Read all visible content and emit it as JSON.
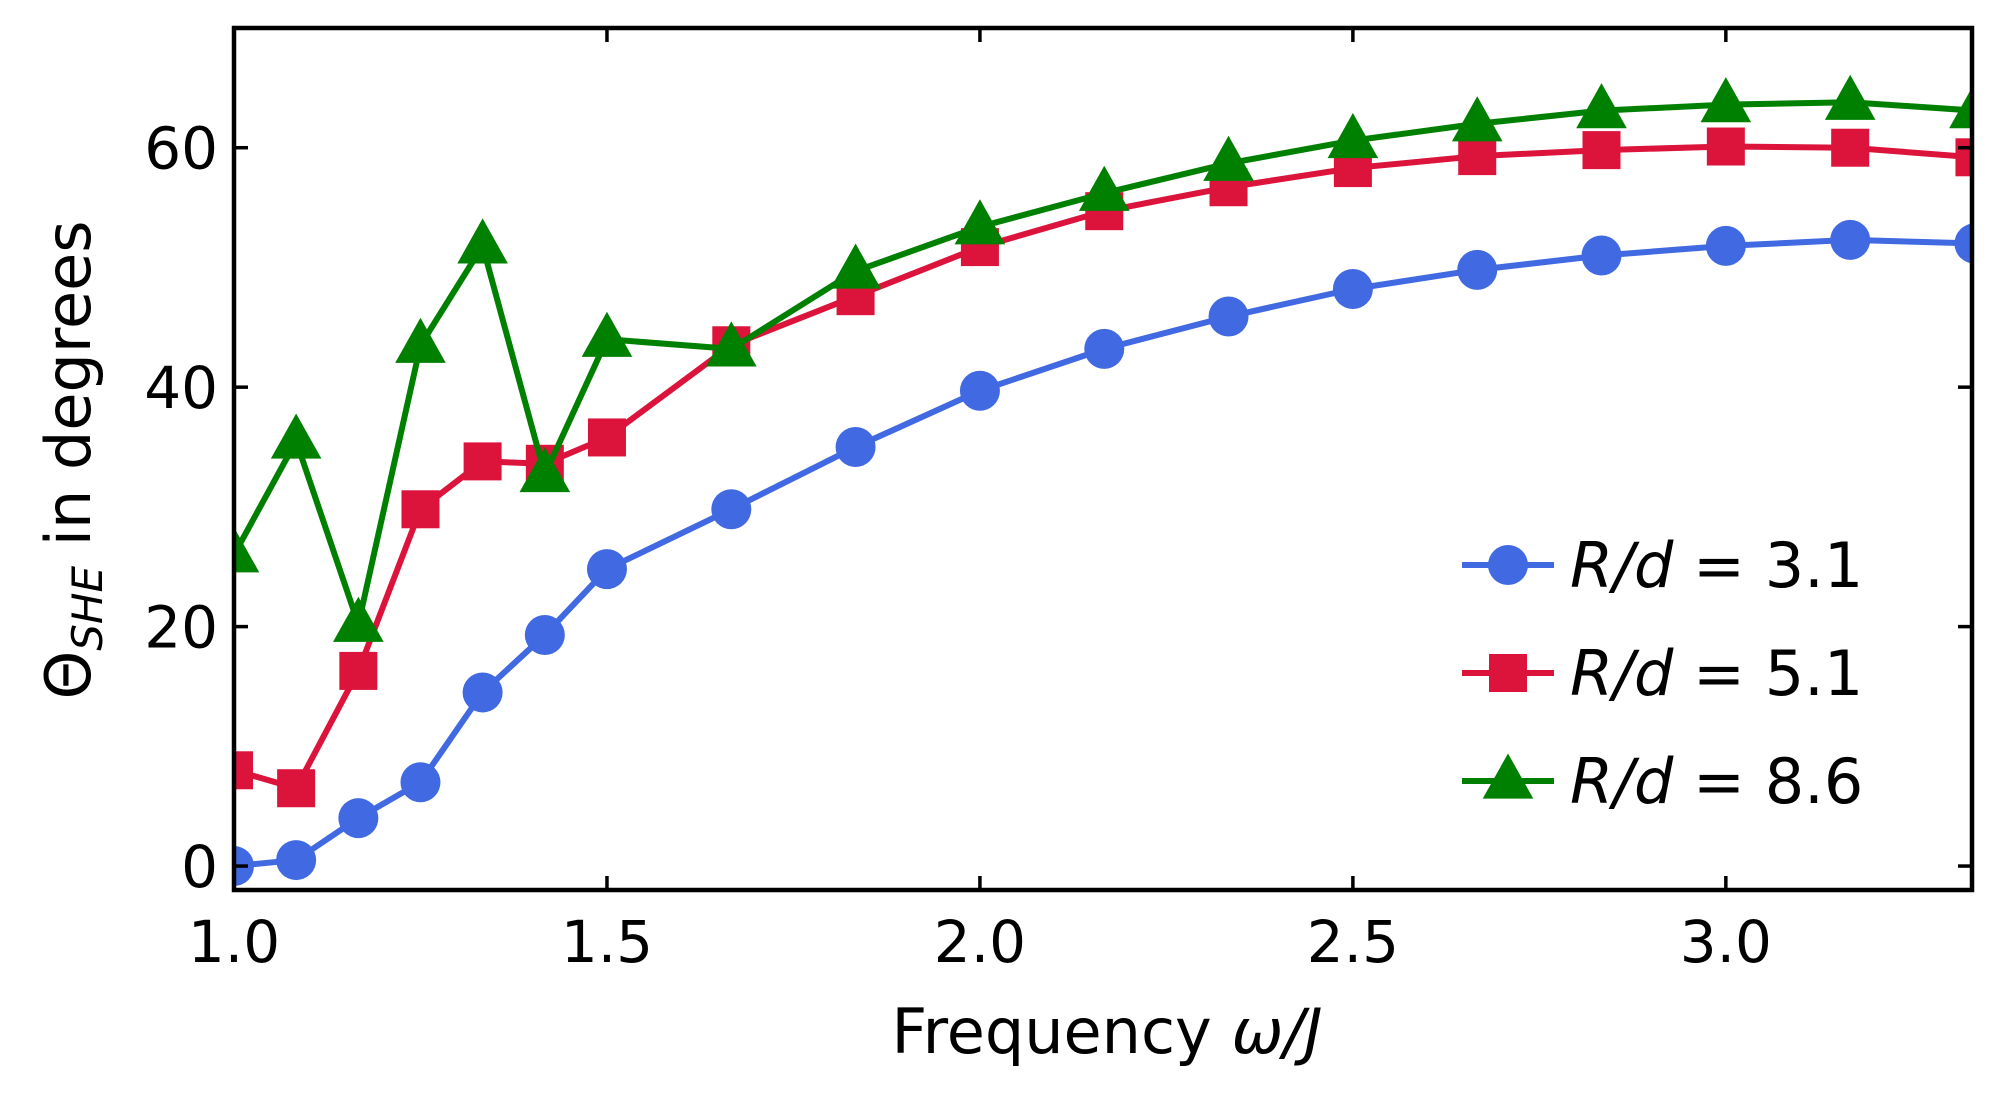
{
  "chart_data": {
    "type": "line",
    "title": "",
    "xlabel": "Frequency ω/J",
    "xlabel_text": "Frequency ",
    "xlabel_math": "ω/J",
    "ylabel": "Θ_SHE in degrees",
    "ylabel_symbol": "Θ",
    "ylabel_subscript": "SHE",
    "ylabel_rest": " in degrees",
    "xlim": [
      1.0,
      3.33
    ],
    "ylim": [
      -2,
      70
    ],
    "xticks": [
      1.0,
      1.5,
      2.0,
      2.5,
      3.0
    ],
    "xtick_labels": [
      "1.0",
      "1.5",
      "2.0",
      "2.5",
      "3.0"
    ],
    "yticks": [
      0,
      20,
      40,
      60
    ],
    "ytick_labels": [
      "0",
      "20",
      "40",
      "60"
    ],
    "grid": false,
    "legend_position": "lower-right",
    "series": [
      {
        "name": "R/d = 3.1",
        "legend_var": "R/d",
        "legend_eq": " = ",
        "legend_val": "3.1",
        "color": "#4169e1",
        "marker": "circle",
        "x": [
          1.0,
          1.0833,
          1.1667,
          1.25,
          1.3333,
          1.4167,
          1.5,
          1.6667,
          1.8333,
          2.0,
          2.1667,
          2.3333,
          2.5,
          2.6667,
          2.8333,
          3.0,
          3.1667,
          3.3333
        ],
        "y": [
          0,
          0.5,
          4,
          7,
          14.5,
          19.3,
          24.8,
          29.8,
          35.0,
          39.7,
          43.2,
          45.9,
          48.2,
          49.8,
          51.0,
          51.8,
          52.3,
          52.0
        ]
      },
      {
        "name": "R/d = 5.1",
        "legend_var": "R/d",
        "legend_eq": " = ",
        "legend_val": "5.1",
        "color": "#dc143c",
        "marker": "square",
        "x": [
          1.0,
          1.0833,
          1.1667,
          1.25,
          1.3333,
          1.4167,
          1.5,
          1.6667,
          1.8333,
          2.0,
          2.1667,
          2.3333,
          2.5,
          2.6667,
          2.8333,
          3.0,
          3.1667,
          3.3333
        ],
        "y": [
          8,
          6.5,
          16.3,
          29.8,
          33.8,
          33.6,
          35.8,
          43.5,
          47.6,
          51.7,
          54.7,
          56.7,
          58.3,
          59.3,
          59.8,
          60.1,
          60.0,
          59.2
        ]
      },
      {
        "name": "R/d = 8.6",
        "legend_var": "R/d",
        "legend_eq": " = ",
        "legend_val": "8.6",
        "color": "#008000",
        "marker": "triangle",
        "x": [
          1.0,
          1.0833,
          1.1667,
          1.25,
          1.3333,
          1.4167,
          1.5,
          1.6667,
          1.8333,
          2.0,
          2.1667,
          2.3333,
          2.5,
          2.6667,
          2.8333,
          3.0,
          3.1667,
          3.3333
        ],
        "y": [
          26.0,
          35.5,
          20.2,
          43.5,
          51.8,
          32.7,
          44.0,
          43.2,
          49.7,
          53.4,
          56.2,
          58.7,
          60.6,
          62.0,
          63.1,
          63.6,
          63.8,
          63.1
        ]
      }
    ]
  }
}
